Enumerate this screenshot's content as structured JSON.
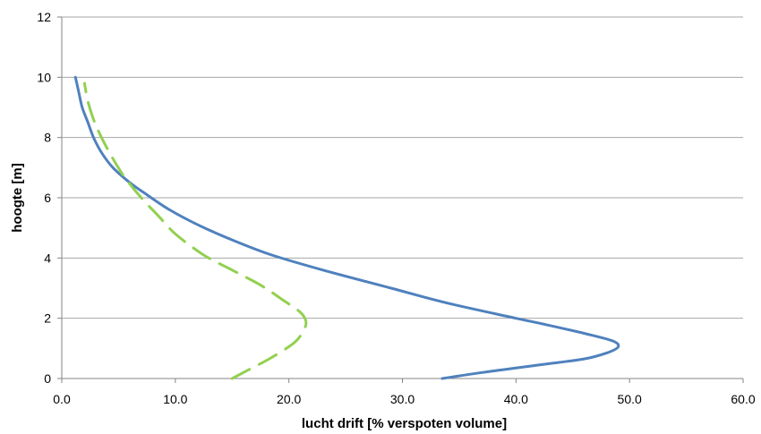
{
  "chart_data": {
    "type": "line",
    "xlabel": "lucht drift  [% verspoten volume]",
    "ylabel": "hoogte [m]",
    "xlim": [
      0,
      60
    ],
    "ylim": [
      0,
      12
    ],
    "x_ticks": [
      "0.0",
      "10.0",
      "20.0",
      "30.0",
      "40.0",
      "50.0",
      "60.0"
    ],
    "y_ticks": [
      "0",
      "2",
      "4",
      "6",
      "8",
      "10",
      "12"
    ],
    "grid": "horizontal",
    "legend": "none",
    "series": [
      {
        "color": "#4F81BD",
        "style": "solid",
        "points": [
          [
            33.5,
            0.0
          ],
          [
            37.0,
            0.2
          ],
          [
            42.0,
            0.45
          ],
          [
            46.0,
            0.65
          ],
          [
            48.0,
            0.85
          ],
          [
            49.0,
            1.05
          ],
          [
            48.5,
            1.25
          ],
          [
            46.0,
            1.5
          ],
          [
            42.5,
            1.8
          ],
          [
            40.0,
            2.0
          ],
          [
            34.0,
            2.5
          ],
          [
            29.0,
            3.0
          ],
          [
            23.0,
            3.6
          ],
          [
            18.5,
            4.1
          ],
          [
            15.0,
            4.6
          ],
          [
            12.0,
            5.1
          ],
          [
            9.5,
            5.6
          ],
          [
            7.5,
            6.1
          ],
          [
            6.0,
            6.5
          ],
          [
            4.5,
            7.0
          ],
          [
            3.5,
            7.5
          ],
          [
            2.8,
            8.0
          ],
          [
            2.3,
            8.5
          ],
          [
            1.8,
            9.0
          ],
          [
            1.5,
            9.5
          ],
          [
            1.2,
            10.0
          ]
        ]
      },
      {
        "color": "#92D050",
        "style": "dashed",
        "points": [
          [
            15.0,
            0.0
          ],
          [
            16.5,
            0.3
          ],
          [
            18.5,
            0.7
          ],
          [
            20.5,
            1.2
          ],
          [
            21.3,
            1.6
          ],
          [
            21.5,
            1.9
          ],
          [
            21.0,
            2.2
          ],
          [
            19.5,
            2.6
          ],
          [
            17.5,
            3.1
          ],
          [
            15.0,
            3.6
          ],
          [
            12.5,
            4.1
          ],
          [
            10.0,
            4.8
          ],
          [
            8.5,
            5.4
          ],
          [
            7.0,
            6.0
          ],
          [
            5.5,
            6.7
          ],
          [
            4.5,
            7.3
          ],
          [
            3.5,
            8.0
          ],
          [
            2.8,
            8.6
          ],
          [
            2.3,
            9.2
          ],
          [
            2.0,
            9.8
          ]
        ]
      }
    ]
  }
}
